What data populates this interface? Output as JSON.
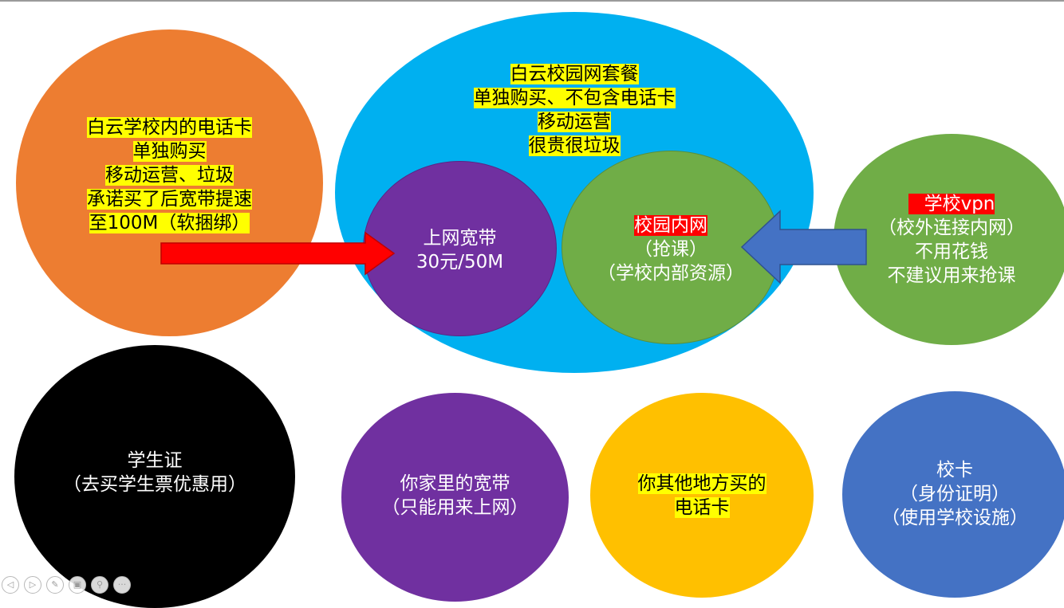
{
  "circles": {
    "phone_card": {
      "lines": [
        "白云学校内的电话卡",
        "单独购买",
        "移动运营、垃圾",
        "承诺买了后宽带提速",
        "至100M（软捆绑）"
      ],
      "color": "#ed7d31"
    },
    "campus_package": {
      "lines": [
        "白云校园网套餐",
        "单独购买、不包含电话卡",
        "移动运营",
        "很贵很垃圾"
      ],
      "color": "#00b0f0"
    },
    "broadband": {
      "lines": [
        "上网宽带",
        "30元/50M"
      ],
      "color": "#7030a0"
    },
    "intranet": {
      "title": "校园内网",
      "lines": [
        "（抢课）",
        "（学校内部资源）"
      ],
      "color": "#70ad47"
    },
    "vpn": {
      "title": "学校vpn",
      "lines": [
        "（校外连接内网）",
        "不用花钱",
        "不建议用来抢课"
      ],
      "color": "#70ad47"
    },
    "student_id": {
      "lines": [
        "学生证",
        "（去买学生票优惠用）"
      ],
      "color": "#000000"
    },
    "home_broadband": {
      "lines": [
        "你家里的宽带",
        "（只能用来上网）"
      ],
      "color": "#7030a0"
    },
    "other_phone": {
      "lines": [
        "你其他地方买的",
        "电话卡"
      ],
      "color": "#ffc000"
    },
    "campus_card": {
      "lines": [
        "校卡",
        "（身份证明）",
        "（使用学校设施）"
      ],
      "color": "#4472c4"
    }
  },
  "arrows": {
    "red_arrow_color": "#ff0000",
    "blue_arrow_color": "#4472c4"
  },
  "toolbar": {
    "prev_icon": "◁",
    "next_icon": "▷",
    "pen_icon": "✎",
    "slides_icon": "▣",
    "zoom_icon": "⚲",
    "more_icon": "···"
  }
}
